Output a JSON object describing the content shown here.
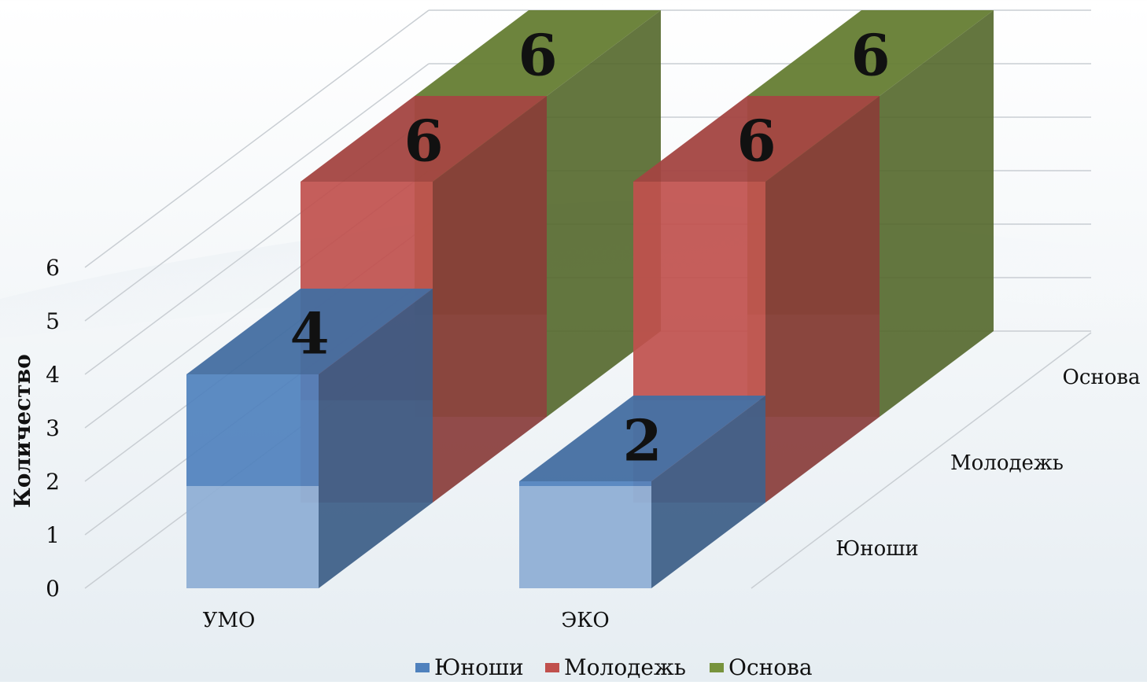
{
  "chart_data": {
    "type": "bar",
    "subtype": "3d-column",
    "categories": [
      "УМО",
      "ЭКО"
    ],
    "series": [
      {
        "name": "Юноши",
        "values": [
          4,
          2
        ],
        "color": "#4f81bd"
      },
      {
        "name": "Молодежь",
        "values": [
          6,
          6
        ],
        "color": "#c0504d"
      },
      {
        "name": "Основа",
        "values": [
          6,
          6
        ],
        "color": "#77933c"
      }
    ],
    "title": "",
    "xlabel": "",
    "ylabel": "Количество",
    "ylim": [
      0,
      6
    ],
    "yticks": [
      "0",
      "1",
      "2",
      "3",
      "4",
      "5",
      "6"
    ],
    "depth_labels": [
      "Юноши",
      "Молодежь",
      "Основа"
    ],
    "grid": true,
    "legend": "bottom"
  }
}
